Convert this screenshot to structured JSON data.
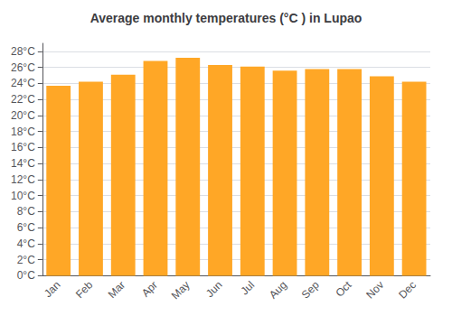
{
  "chart_data": {
    "type": "bar",
    "title": "Average monthly temperatures (°C ) in Lupao",
    "categories": [
      "Jan",
      "Feb",
      "Mar",
      "Apr",
      "May",
      "Jun",
      "Jul",
      "Aug",
      "Sep",
      "Oct",
      "Nov",
      "Dec"
    ],
    "values": [
      23.7,
      24.2,
      25.1,
      26.8,
      27.2,
      26.3,
      26.1,
      25.6,
      25.8,
      25.8,
      24.9,
      24.2
    ],
    "color": "#FFA726",
    "ylim": [
      0,
      29
    ],
    "yticks": [
      {
        "value": 0,
        "label": "0°C"
      },
      {
        "value": 2,
        "label": "2°C"
      },
      {
        "value": 4,
        "label": "4°C"
      },
      {
        "value": 6,
        "label": "6°C"
      },
      {
        "value": 8,
        "label": "8°C"
      },
      {
        "value": 10,
        "label": "10°C"
      },
      {
        "value": 12,
        "label": "12°C"
      },
      {
        "value": 14,
        "label": "14°C"
      },
      {
        "value": 16,
        "label": "16°C"
      },
      {
        "value": 18,
        "label": "18°C"
      },
      {
        "value": 20,
        "label": "20°C"
      },
      {
        "value": 22,
        "label": "22°C"
      },
      {
        "value": 24,
        "label": "24°C"
      },
      {
        "value": 26,
        "label": "26°C"
      },
      {
        "value": 28,
        "label": "28°C"
      }
    ],
    "grid": true
  }
}
